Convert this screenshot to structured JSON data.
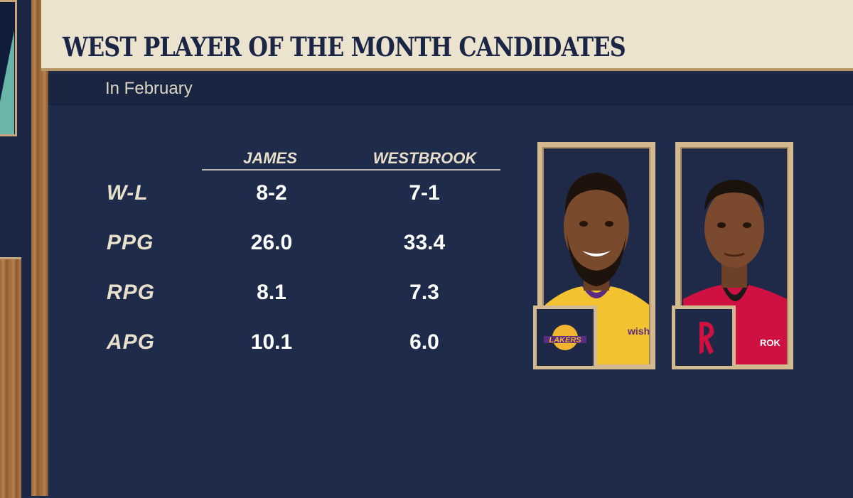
{
  "title": "WEST PLAYER OF THE MONTH CANDIDATES",
  "subtitle": "In February",
  "players": [
    "JAMES",
    "WESTBROOK"
  ],
  "rows": [
    {
      "label": "W-L",
      "values": [
        "8-2",
        "7-1"
      ]
    },
    {
      "label": "PPG",
      "values": [
        "26.0",
        "33.4"
      ]
    },
    {
      "label": "RPG",
      "values": [
        "8.1",
        "7.3"
      ]
    },
    {
      "label": "APG",
      "values": [
        "10.1",
        "6.0"
      ]
    }
  ],
  "cards": [
    {
      "jersey_mark": "wish",
      "logo_text": "LAKERS",
      "colors": {
        "jersey": "#f2c230",
        "logo": "#5a2d82"
      }
    },
    {
      "jersey_mark": "ROK",
      "logo_text": "",
      "colors": {
        "jersey": "#ce1141",
        "logo": "#ce1141"
      }
    }
  ]
}
